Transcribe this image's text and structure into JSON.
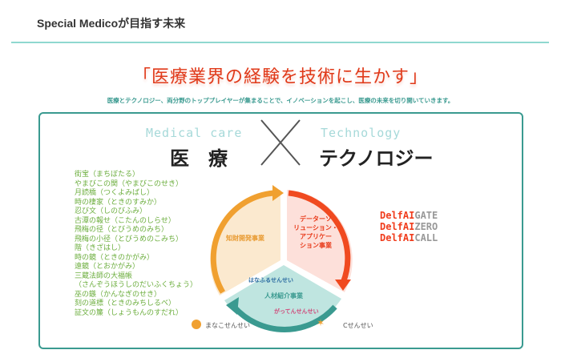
{
  "header": {
    "title": "Special Medicoが目指す未来"
  },
  "headline": "「医療業界の経験を技術に生かす」",
  "subtitle": "医療とテクノロジー、両分野のトッププレイヤーが集まることで、イノベーションを起こし、医療の未来を切り開いていきます。",
  "concept": {
    "left_en": "Medical care",
    "left_jp": "医　療",
    "cross": "×",
    "right_en": "Technology",
    "right_jp": "テクノロジー"
  },
  "products": [
    "街宝（まちぼたる）",
    "やまびこの関（やまびこのせき）",
    "月読橋（つくよみばし）",
    "時の棲家（ときのすみか）",
    "忍び文（しのびふみ）",
    "古潭の報せ（こたんのしらせ）",
    "飛梅の径（とびうめのみち）",
    "飛梅の小径（とびうめのこみち）",
    "階（きざはし）",
    "時の鏡（ときのかがみ）",
    "遠鏡（とおかがみ）",
    "三蔵法師の大福帳",
    "（さんぞうほうしのだいふくちょう）",
    "巫の鏃（かんなぎのせき）",
    "刻の道標（ときのみちしるべ）",
    "証文の簾（しょうもんのすだれ）"
  ],
  "cycle": {
    "ip": "知財開発事業",
    "data": [
      "データーソ",
      "リューション・",
      "アプリケー",
      "ション事業"
    ],
    "hr": "人材紹介事業",
    "hr_brands": [
      "はなふるせんせい",
      "がってんせんせい"
    ],
    "colors": {
      "ip": "#f0a030",
      "data": "#f04a20",
      "hr": "#3a9a90"
    }
  },
  "delfai": [
    {
      "prefix": "Delf",
      "ai": "AI",
      "suffix": "GATE"
    },
    {
      "prefix": "Delf",
      "ai": "AI",
      "suffix": "ZERO"
    },
    {
      "prefix": "Delf",
      "ai": "AI",
      "suffix": "CALL"
    }
  ],
  "bottom_brands": {
    "left": "まなこせんせい",
    "right": "Cせんせい"
  }
}
